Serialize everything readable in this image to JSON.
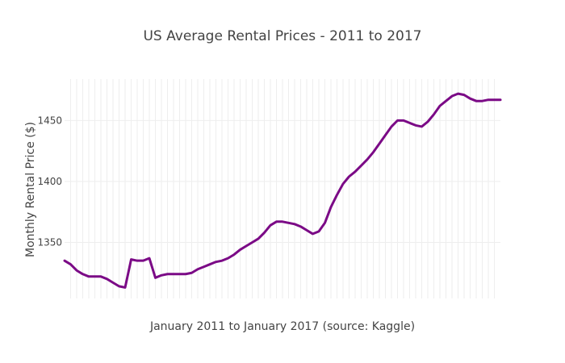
{
  "chart_data": {
    "type": "line",
    "title": "US Average Rental Prices - 2011 to 2017",
    "xlabel": "January 2011 to January 2017 (source: Kaggle)",
    "ylabel": "Monthly Rental Price ($)",
    "ylim": [
      1304,
      1484
    ],
    "yticks": [
      1350,
      1400,
      1450
    ],
    "ytick_labels": [
      "1350",
      "1400",
      "1450"
    ],
    "xlim": [
      0,
      72
    ],
    "vertical_grid_count": 71,
    "grid": true,
    "legend": "none",
    "series_color": "#7b0a86",
    "series": [
      {
        "values": [
          1335,
          1332,
          1327,
          1324,
          1322,
          1322,
          1322,
          1320,
          1317,
          1314,
          1313,
          1336,
          1335,
          1335,
          1337,
          1321,
          1323,
          1324,
          1324,
          1324,
          1324,
          1325,
          1328,
          1330,
          1332,
          1334,
          1335,
          1337,
          1340,
          1344,
          1347,
          1350,
          1353,
          1358,
          1364,
          1367,
          1367,
          1366,
          1365,
          1363,
          1360,
          1357,
          1359,
          1366,
          1379,
          1389,
          1398,
          1404,
          1408,
          1413,
          1418,
          1424,
          1431,
          1438,
          1445,
          1450,
          1450,
          1448,
          1446,
          1445,
          1449,
          1455,
          1462,
          1466,
          1470,
          1472,
          1471,
          1468,
          1466,
          1466,
          1467,
          1467,
          1467
        ]
      }
    ]
  }
}
